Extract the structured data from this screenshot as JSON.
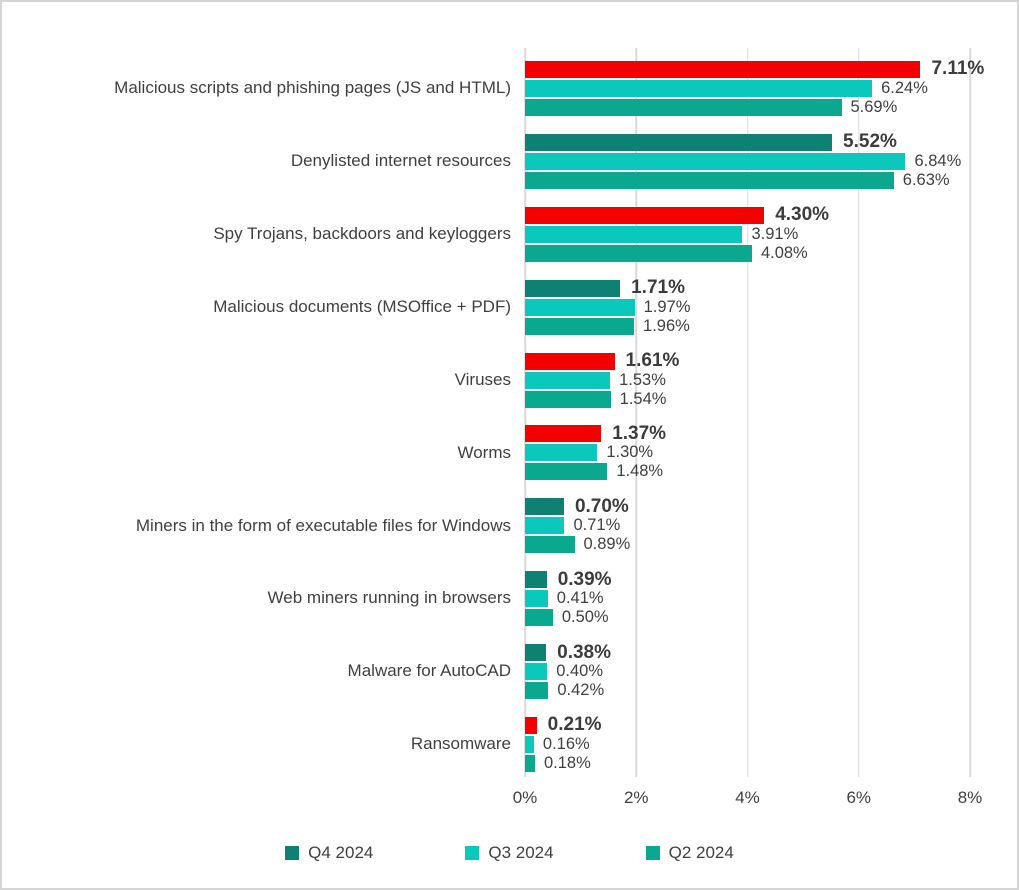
{
  "chart_data": {
    "type": "bar",
    "orientation": "horizontal",
    "title": "",
    "xlabel": "",
    "ylabel": "",
    "xlim": [
      0,
      8
    ],
    "x_ticks": [
      "0%",
      "2%",
      "4%",
      "6%",
      "8%"
    ],
    "grid": true,
    "legend_position": "bottom-center",
    "value_label_format": "0.00%",
    "categories": [
      "Malicious scripts and phishing pages (JS and HTML)",
      "Denylisted internet resources",
      "Spy Trojans, backdoors and keyloggers",
      "Malicious documents (MSOffice + PDF)",
      "Viruses",
      "Worms",
      "Miners in the form of executable files for Windows",
      "Web miners running in browsers",
      "Malware for AutoCAD",
      "Ransomware"
    ],
    "series": [
      {
        "name": "Q4 2024",
        "values": [
          7.11,
          5.52,
          4.3,
          1.71,
          1.61,
          1.37,
          0.7,
          0.39,
          0.38,
          0.21
        ],
        "note": "bar drawn red when value increased vs Q3 2024, dark green otherwise; value label bold"
      },
      {
        "name": "Q3 2024",
        "values": [
          6.24,
          6.84,
          3.91,
          1.97,
          1.53,
          1.3,
          0.71,
          0.41,
          0.4,
          0.16
        ]
      },
      {
        "name": "Q2 2024",
        "values": [
          5.69,
          6.63,
          4.08,
          1.96,
          1.54,
          1.48,
          0.89,
          0.5,
          0.42,
          0.18
        ]
      }
    ],
    "q4_increase_flags": [
      true,
      false,
      true,
      false,
      true,
      true,
      false,
      false,
      false,
      true
    ]
  },
  "legend": {
    "items": [
      {
        "label": "Q4 2024",
        "color": "#0E8172"
      },
      {
        "label": "Q3 2024",
        "color": "#0BC8BD"
      },
      {
        "label": "Q2 2024",
        "color": "#0AA88E"
      }
    ]
  },
  "colors": {
    "increase_red": "#F30000",
    "q4_green": "#0E8172",
    "q3_turquoise": "#0BC8BD",
    "q2_teal": "#0AA88E",
    "text": "#404040",
    "gridline": "#D9D9D9",
    "frame_border": "#D5D5D5",
    "background": "#FFFFFF"
  }
}
